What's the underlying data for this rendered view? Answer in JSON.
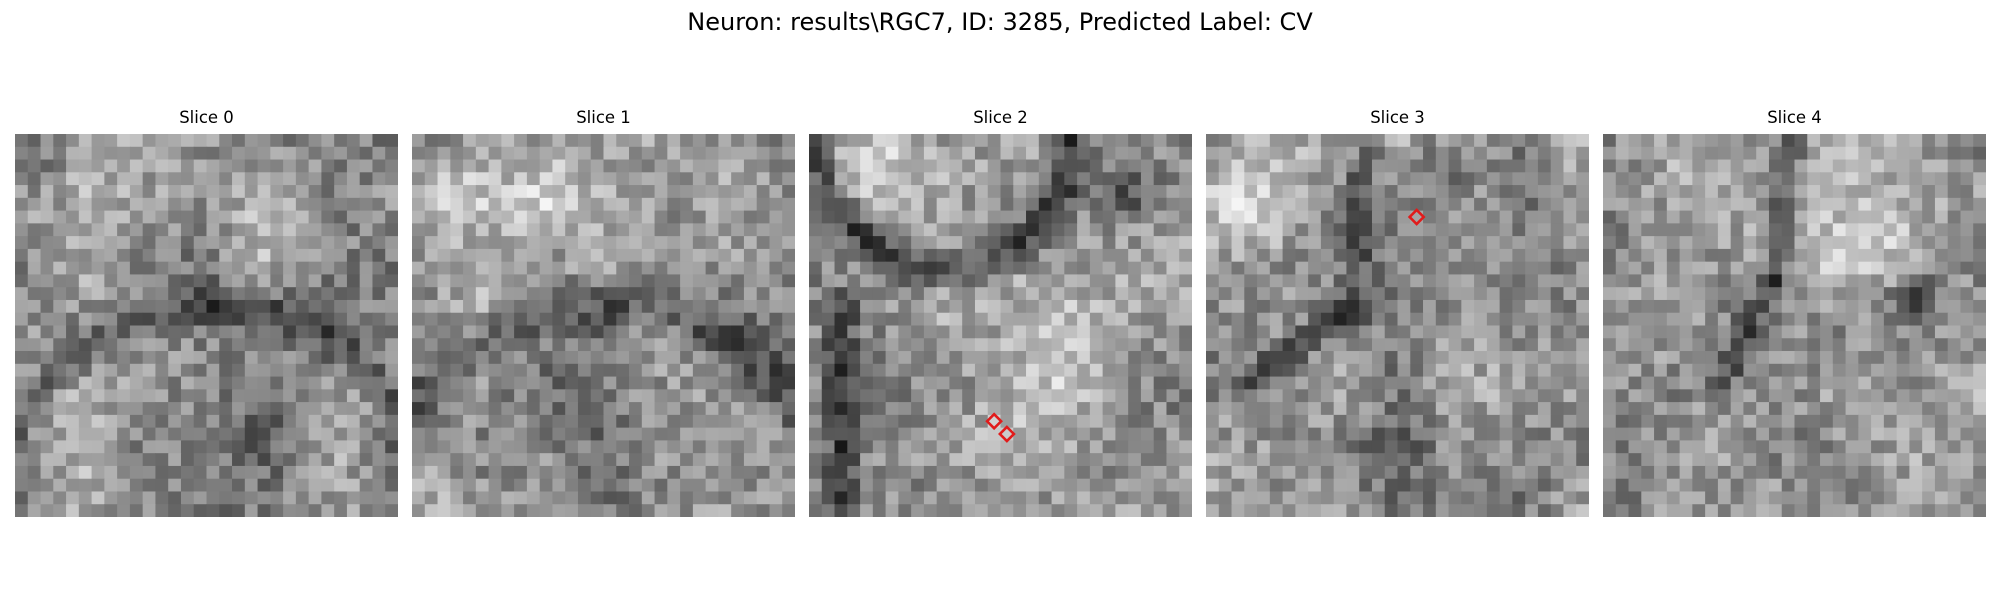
{
  "title": "Neuron: results\\RGC7, ID: 3285, Predicted Label: CV",
  "slices": [
    {
      "label": "Slice 0",
      "markers": []
    },
    {
      "label": "Slice 1",
      "markers": []
    },
    {
      "label": "Slice 2",
      "markers": [
        {
          "col": 14,
          "row": 22
        },
        {
          "col": 15,
          "row": 23
        }
      ]
    },
    {
      "label": "Slice 3",
      "markers": [
        {
          "col": 16,
          "row": 6
        }
      ]
    },
    {
      "label": "Slice 4",
      "markers": []
    }
  ],
  "grid": {
    "rows": 30,
    "cols": 30
  },
  "colors": {
    "marker": "#e11b1b",
    "colormap": "gray"
  },
  "icons": {
    "marker": "diamond"
  }
}
